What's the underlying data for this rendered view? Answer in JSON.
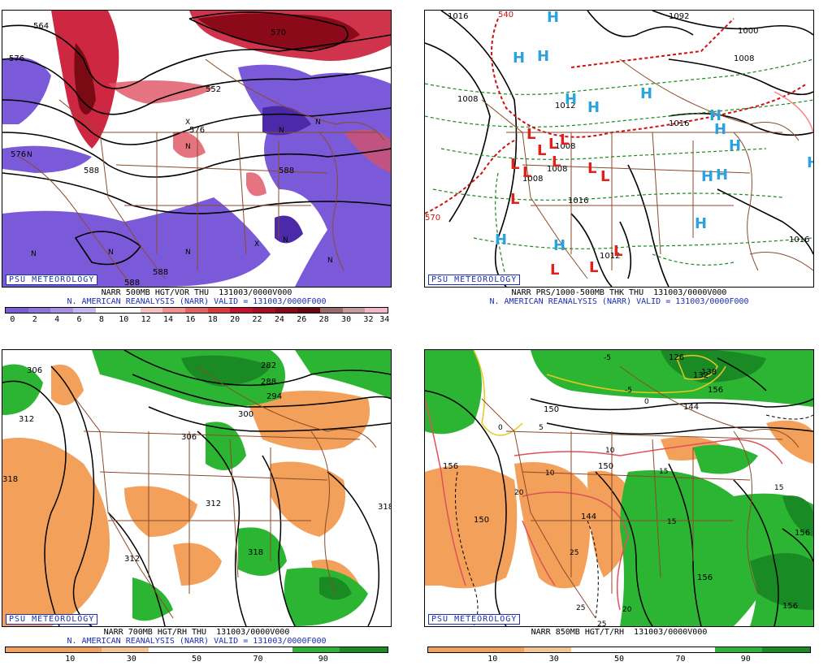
{
  "branding": "PSU METEOROLOGY",
  "colors": {
    "vort_pos": "#c8102e",
    "vort_neg": "#7a5ad8",
    "dry": "#f2a05a",
    "moist": "#2cb532",
    "moist_dark": "#1a8a24",
    "contour": "#000000",
    "border": "#8b4a2b",
    "high_marker": "#2ba3e0",
    "low_marker": "#e0201a",
    "thk_warm": "#d01010",
    "thk_cool": "#1a8a1a",
    "label_blue": "#1a2db5"
  },
  "panels": [
    {
      "caption": "NARR 500MB HGT/VOR THU  131003/0000V000",
      "subcaption": "N. AMERICAN REANALYSIS (NARR) VALID = 131003/0000F000",
      "scale": [
        "0",
        "2",
        "4",
        "6",
        "8",
        "10",
        "12",
        "14",
        "16",
        "18",
        "20",
        "22",
        "24",
        "26",
        "28",
        "30",
        "32",
        "34"
      ],
      "contour_labels": [
        "564",
        "576",
        "576",
        "576",
        "588",
        "588",
        "570",
        "552",
        "588",
        "588"
      ]
    },
    {
      "caption": "NARR PRS/1000-500MB THK THU  131003/0000V000",
      "subcaption": "N. AMERICAN REANALYSIS (NARR) VALID = 131003/0000F000",
      "contour_labels": [
        "1016",
        "1000",
        "1008",
        "1016",
        "1016",
        "1008",
        "1016",
        "1012",
        "1008",
        "1012",
        "1008",
        "1008",
        "570",
        "540",
        "1092"
      ],
      "highs": 14,
      "lows": 12,
      "high_letter": "H",
      "low_letter": "L"
    },
    {
      "caption": "NARR 700MB HGT/RH THU  131003/0000V000",
      "subcaption": "N. AMERICAN REANALYSIS (NARR) VALID = 131003/0000F000",
      "scale": [
        "10",
        "30",
        "50",
        "70",
        "90"
      ],
      "contour_labels": [
        "306",
        "312",
        "318",
        "282",
        "288",
        "294",
        "300",
        "306",
        "312",
        "318",
        "318",
        "312"
      ]
    },
    {
      "caption": "NARR 850MB HGT/T/RH  131003/0000V000",
      "subcaption": "",
      "scale": [
        "10",
        "30",
        "50",
        "70",
        "90"
      ],
      "contour_labels": [
        "150",
        "156",
        "150",
        "144",
        "156",
        "156",
        "144",
        "150",
        "156",
        "138",
        "132",
        "126",
        "156"
      ],
      "temp_labels": [
        "-5",
        "-5",
        "0",
        "0",
        "5",
        "10",
        "10",
        "20",
        "15",
        "15",
        "15",
        "25",
        "25",
        "20",
        "25"
      ]
    }
  ]
}
